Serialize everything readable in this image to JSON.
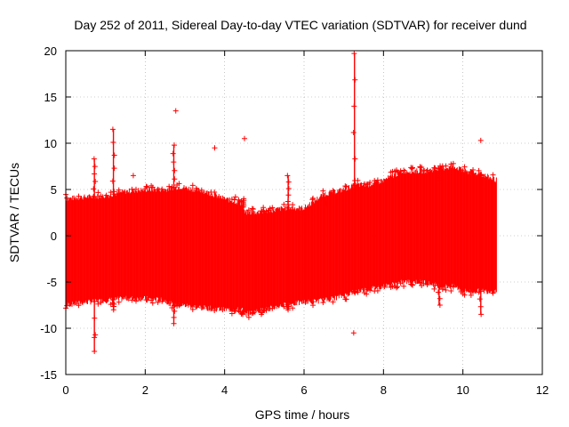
{
  "chart_data": {
    "type": "scatter",
    "title": "Day 252 of 2011, Sidereal Day-to-day VTEC variation (SDTVAR) for receiver dund",
    "xlabel": "GPS time / hours",
    "ylabel": "SDTVAR / TECUs",
    "xlim": [
      0,
      12
    ],
    "ylim": [
      -15,
      20
    ],
    "xticks": [
      0,
      2,
      4,
      6,
      8,
      10,
      12
    ],
    "yticks": [
      -15,
      -10,
      -5,
      0,
      5,
      10,
      15,
      20
    ],
    "grid": true,
    "series_color": "#ff0000",
    "marker": "plus",
    "envelope": {
      "x": [
        0.0,
        0.5,
        1.0,
        1.5,
        2.0,
        2.5,
        2.7,
        2.9,
        3.5,
        4.0,
        4.45,
        4.5,
        5.0,
        5.5,
        6.0,
        6.5,
        7.0,
        7.3,
        7.6,
        8.0,
        8.5,
        9.0,
        9.5,
        9.8,
        10.0,
        10.5,
        10.85
      ],
      "upper": [
        4.0,
        4.2,
        4.3,
        4.8,
        5.0,
        5.0,
        5.2,
        5.3,
        4.8,
        4.0,
        3.5,
        2.5,
        2.6,
        3.0,
        3.0,
        4.5,
        5.0,
        5.5,
        5.5,
        6.0,
        7.0,
        7.0,
        7.3,
        7.5,
        7.0,
        6.6,
        6.0
      ],
      "lower": [
        -7.5,
        -7.2,
        -7.0,
        -6.8,
        -6.8,
        -7.0,
        -7.5,
        -7.5,
        -7.8,
        -8.0,
        -8.0,
        -8.5,
        -8.0,
        -7.5,
        -7.2,
        -7.0,
        -6.5,
        -6.0,
        -5.8,
        -5.5,
        -5.0,
        -5.0,
        -5.5,
        -5.5,
        -6.0,
        -6.0,
        -6.0
      ]
    },
    "spikes": [
      {
        "x": 0.72,
        "low": -12.5,
        "high": 8.3
      },
      {
        "x": 1.2,
        "low": -8.0,
        "high": 11.5
      },
      {
        "x": 2.72,
        "low": -9.5,
        "high": 9.8
      },
      {
        "x": 4.47,
        "low": -8.5,
        "high": 4.0
      },
      {
        "x": 5.6,
        "low": -8.0,
        "high": 6.5
      },
      {
        "x": 7.27,
        "low": -6.0,
        "high": 19.7
      },
      {
        "x": 9.4,
        "low": -7.5,
        "high": 6.0
      },
      {
        "x": 10.45,
        "low": -8.5,
        "high": 6.5
      }
    ],
    "outliers": [
      {
        "x": 2.77,
        "y": 13.5
      },
      {
        "x": 3.75,
        "y": 9.5
      },
      {
        "x": 4.5,
        "y": 10.5
      },
      {
        "x": 7.25,
        "y": -10.5
      },
      {
        "x": 10.45,
        "y": 10.3
      },
      {
        "x": 0.72,
        "y": -11.0
      },
      {
        "x": 1.7,
        "y": 6.5
      },
      {
        "x": 6.55,
        "y": 3.5
      }
    ]
  }
}
